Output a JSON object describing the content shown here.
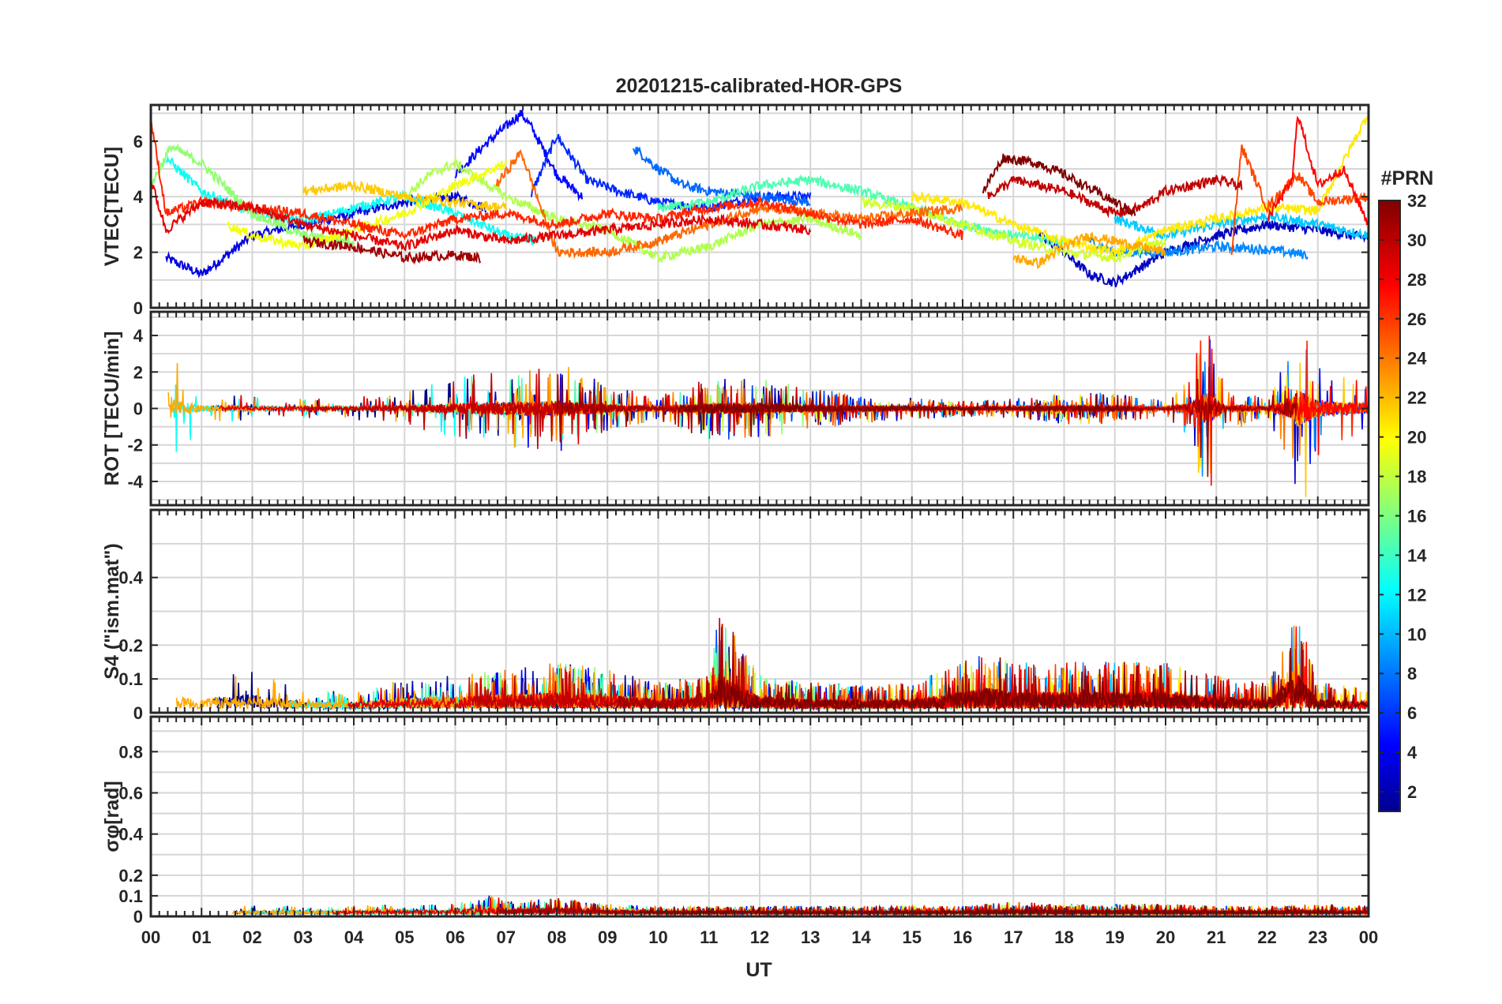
{
  "chart_data": {
    "type": "line",
    "title": "20201215-calibrated-HOR-GPS",
    "xlabel": "UT",
    "x_ticks": [
      "00",
      "01",
      "02",
      "03",
      "04",
      "05",
      "06",
      "07",
      "08",
      "09",
      "10",
      "11",
      "12",
      "13",
      "14",
      "15",
      "16",
      "17",
      "18",
      "19",
      "20",
      "21",
      "22",
      "23",
      "00"
    ],
    "xlim": [
      0,
      24
    ],
    "colorbar": {
      "label": "#PRN",
      "range": [
        1,
        32
      ],
      "ticks": [
        "2",
        "4",
        "6",
        "8",
        "10",
        "12",
        "14",
        "16",
        "18",
        "20",
        "22",
        "24",
        "26",
        "28",
        "30",
        "32"
      ]
    },
    "panels": [
      {
        "id": "vtec",
        "ylabel": "VTEC[TECU]",
        "ylim": [
          0,
          7.3
        ],
        "yticks": [
          0,
          2,
          4,
          6
        ],
        "ytick_labels": [
          "0",
          "2",
          "4",
          "6"
        ],
        "kind": "smooth",
        "series": [
          {
            "prn": 4,
            "x": [
              0.3,
              1.0,
              2.0,
              3.0,
              4.0,
              5.0,
              6.0,
              6.6
            ],
            "y": [
              1.8,
              1.2,
              2.6,
              3.0,
              3.4,
              3.8,
              4.0,
              3.6
            ]
          },
          {
            "prn": 5,
            "x": [
              6.0,
              6.6,
              7.3,
              7.5,
              8.0,
              8.5
            ],
            "y": [
              4.8,
              5.9,
              7.0,
              6.5,
              4.8,
              4.0
            ]
          },
          {
            "prn": 6,
            "x": [
              7.5,
              8.0,
              8.6,
              9.2,
              10.0,
              11.0,
              12.0,
              13.0
            ],
            "y": [
              4.1,
              6.2,
              4.6,
              4.2,
              3.8,
              3.6,
              4.0,
              4.0
            ]
          },
          {
            "prn": 8,
            "x": [
              9.5,
              10.0,
              10.5,
              11.0,
              12.0,
              13.0
            ],
            "y": [
              5.8,
              5.0,
              4.4,
              4.2,
              4.0,
              3.8
            ]
          },
          {
            "prn": 3,
            "x": [
              17.5,
              18.0,
              18.5,
              19.0,
              20.0,
              21.0,
              22.0,
              23.0,
              24.0
            ],
            "y": [
              2.6,
              2.0,
              1.2,
              0.9,
              2.0,
              2.6,
              3.0,
              2.8,
              2.5
            ]
          },
          {
            "prn": 9,
            "x": [
              18.5,
              19.0,
              20.0,
              21.0,
              22.0,
              22.8
            ],
            "y": [
              2.4,
              2.0,
              2.0,
              2.2,
              2.1,
              1.9
            ]
          },
          {
            "prn": 11,
            "x": [
              19.0,
              20.0,
              21.0,
              22.0,
              23.0,
              24.0
            ],
            "y": [
              3.2,
              2.6,
              3.0,
              3.3,
              3.0,
              2.6
            ]
          },
          {
            "prn": 13,
            "x": [
              0.3,
              1.0,
              2.0,
              3.0,
              4.0,
              5.0,
              6.0,
              7.0,
              7.6
            ],
            "y": [
              5.4,
              4.2,
              3.4,
              3.1,
              3.6,
              4.0,
              3.4,
              2.6,
              2.4
            ]
          },
          {
            "prn": 15,
            "x": [
              10.0,
              11.0,
              12.0,
              13.0,
              14.0,
              15.0,
              16.0,
              17.0,
              18.0
            ],
            "y": [
              3.6,
              3.8,
              4.4,
              4.6,
              4.2,
              3.6,
              3.0,
              2.6,
              2.4
            ]
          },
          {
            "prn": 17,
            "x": [
              0.0,
              0.4,
              1.0,
              2.0,
              3.0,
              4.0
            ],
            "y": [
              4.4,
              5.8,
              5.2,
              3.4,
              2.6,
              2.4
            ]
          },
          {
            "prn": 18,
            "x": [
              5.0,
              5.5,
              6.0,
              7.0,
              8.0,
              9.0,
              10.0,
              11.0,
              12.0,
              13.0,
              14.0
            ],
            "y": [
              4.0,
              4.8,
              5.2,
              4.0,
              3.2,
              2.8,
              1.8,
              2.2,
              3.0,
              3.2,
              2.6
            ]
          },
          {
            "prn": 19,
            "x": [
              14.0,
              15.0,
              16.0,
              17.0,
              18.0,
              19.0,
              20.0
            ],
            "y": [
              3.8,
              3.6,
              3.0,
              2.4,
              2.0,
              1.8,
              2.4
            ]
          },
          {
            "prn": 20,
            "x": [
              1.5,
              2.0,
              3.0,
              4.0,
              5.0,
              6.0,
              7.0
            ],
            "y": [
              3.0,
              2.6,
              2.2,
              2.8,
              3.4,
              4.4,
              5.2
            ]
          },
          {
            "prn": 21,
            "x": [
              15.0,
              16.0,
              17.0,
              18.0,
              19.0,
              20.0,
              21.0,
              22.0,
              23.0,
              24.0
            ],
            "y": [
              4.0,
              3.8,
              3.0,
              2.4,
              2.0,
              2.8,
              3.2,
              3.6,
              3.5,
              7.0
            ]
          },
          {
            "prn": 22,
            "x": [
              3.0,
              4.0,
              5.0,
              6.0,
              7.0
            ],
            "y": [
              4.2,
              4.4,
              4.0,
              3.8,
              3.6
            ]
          },
          {
            "prn": 23,
            "x": [
              17.0,
              17.5,
              18.0,
              18.5,
              19.0,
              20.0
            ],
            "y": [
              1.8,
              1.6,
              2.2,
              2.6,
              2.4,
              2.0
            ]
          },
          {
            "prn": 25,
            "x": [
              6.8,
              7.3,
              8.0,
              9.0,
              10.0,
              11.0,
              12.0,
              13.0,
              14.0,
              15.0,
              16.0
            ],
            "y": [
              4.4,
              5.6,
              2.0,
              2.0,
              2.4,
              3.0,
              3.6,
              3.4,
              3.2,
              3.4,
              3.6
            ]
          },
          {
            "prn": 26,
            "x": [
              21.3,
              21.5,
              22.0,
              22.6,
              23.0,
              24.0
            ],
            "y": [
              2.0,
              5.8,
              3.6,
              4.8,
              3.8,
              4.0
            ]
          },
          {
            "prn": 27,
            "x": [
              0.0,
              0.3,
              1.0,
              2.0,
              3.0,
              4.0,
              5.0,
              6.0,
              7.0,
              8.0,
              9.0,
              10.0,
              11.0,
              12.0,
              13.0,
              14.0,
              15.0,
              16.0
            ],
            "y": [
              6.8,
              3.4,
              3.8,
              3.6,
              3.4,
              3.0,
              2.6,
              3.2,
              3.4,
              3.0,
              3.4,
              3.2,
              3.6,
              3.8,
              3.4,
              3.0,
              3.2,
              2.6
            ]
          },
          {
            "prn": 28,
            "x": [
              22.0,
              22.5,
              22.6,
              23.0,
              23.5,
              24.0
            ],
            "y": [
              3.2,
              4.6,
              7.0,
              4.4,
              5.0,
              3.0
            ]
          },
          {
            "prn": 29,
            "x": [
              0.0,
              0.3,
              1.0,
              2.0,
              3.0,
              4.0,
              5.0,
              6.0,
              7.0,
              8.0,
              9.0,
              10.0,
              11.0,
              12.0,
              13.0
            ],
            "y": [
              4.6,
              2.8,
              3.8,
              3.6,
              3.0,
              2.6,
              2.2,
              2.8,
              2.4,
              2.6,
              2.8,
              3.0,
              3.2,
              3.0,
              2.8
            ]
          },
          {
            "prn": 30,
            "x": [
              16.5,
              17.0,
              18.0,
              18.5,
              19.0,
              19.5,
              20.0,
              21.0,
              21.5
            ],
            "y": [
              4.0,
              4.6,
              4.2,
              3.8,
              3.4,
              3.6,
              4.2,
              4.6,
              4.4
            ]
          },
          {
            "prn": 31,
            "x": [
              3.0,
              4.0,
              5.0,
              6.0,
              6.5
            ],
            "y": [
              2.4,
              2.2,
              1.8,
              1.9,
              1.8
            ]
          },
          {
            "prn": 32,
            "x": [
              16.4,
              16.8,
              17.5,
              18.0,
              18.6,
              19.0,
              19.4
            ],
            "y": [
              4.2,
              5.4,
              5.2,
              4.8,
              4.2,
              3.8,
              3.4
            ]
          }
        ]
      },
      {
        "id": "rot",
        "ylabel": "ROT [TECU/min]",
        "ylim": [
          -5.3,
          5.3
        ],
        "yticks": [
          -4,
          -2,
          0,
          2,
          4
        ],
        "ytick_labels": [
          "-4",
          "-2",
          "0",
          "2",
          "4"
        ],
        "kind": "noise",
        "activity": {
          "x": [
            0,
            0.2,
            0.5,
            1,
            2,
            3,
            4,
            5,
            6,
            7,
            8,
            9,
            10,
            11,
            12,
            13,
            14,
            15,
            16,
            17,
            18,
            19,
            20,
            20.5,
            20.8,
            21.2,
            21.5,
            22,
            22.5,
            22.6,
            23,
            24
          ],
          "amp": [
            1.0,
            4.0,
            1.2,
            0.5,
            0.3,
            0.25,
            0.3,
            0.4,
            0.8,
            1.0,
            1.2,
            0.6,
            0.3,
            0.8,
            0.8,
            0.5,
            0.4,
            0.3,
            0.2,
            0.25,
            0.4,
            0.4,
            0.2,
            0.8,
            2.6,
            0.4,
            0.5,
            0.2,
            1.6,
            3.0,
            1.2,
            0.8
          ]
        }
      },
      {
        "id": "s4",
        "ylabel": "S4 (\"ism.mat\")",
        "ylim": [
          0,
          0.6
        ],
        "yticks": [
          0,
          0.1,
          0.2,
          0.4
        ],
        "ytick_labels": [
          "0",
          "0.1",
          "0.2",
          "0.4"
        ],
        "kind": "positive-noise",
        "activity": {
          "x": [
            0,
            1,
            2,
            3,
            4,
            5,
            6,
            7,
            8,
            9,
            10,
            11,
            11.2,
            12,
            13,
            14,
            15,
            16,
            16.5,
            17,
            18,
            19,
            20,
            21,
            22,
            22.6,
            23,
            24
          ],
          "amp": [
            0.12,
            0.08,
            0.12,
            0.06,
            0.05,
            0.09,
            0.1,
            0.12,
            0.14,
            0.12,
            0.08,
            0.1,
            0.3,
            0.1,
            0.08,
            0.07,
            0.08,
            0.14,
            0.18,
            0.14,
            0.14,
            0.14,
            0.14,
            0.1,
            0.08,
            0.3,
            0.08,
            0.06
          ]
        }
      },
      {
        "id": "sigma_phi",
        "ylabel": "σφ[rad]",
        "ylim": [
          0,
          0.97
        ],
        "yticks": [
          0,
          0.1,
          0.2,
          0.4,
          0.6,
          0.8
        ],
        "ytick_labels": [
          "0",
          "0.1",
          "0.2",
          "0.4",
          "0.6",
          "0.8"
        ],
        "kind": "positive-noise",
        "activity": {
          "x": [
            0,
            0.2,
            0.5,
            1,
            2,
            3,
            4,
            5,
            6,
            6.8,
            7,
            8,
            9,
            10,
            11,
            12,
            13,
            14,
            15,
            16,
            17,
            18,
            19,
            20,
            21,
            22,
            23,
            24
          ],
          "amp": [
            0.08,
            0.22,
            0.06,
            0.04,
            0.04,
            0.04,
            0.04,
            0.05,
            0.05,
            0.1,
            0.06,
            0.08,
            0.05,
            0.04,
            0.04,
            0.04,
            0.04,
            0.04,
            0.04,
            0.04,
            0.06,
            0.05,
            0.05,
            0.05,
            0.04,
            0.04,
            0.05,
            0.04
          ]
        }
      }
    ]
  }
}
